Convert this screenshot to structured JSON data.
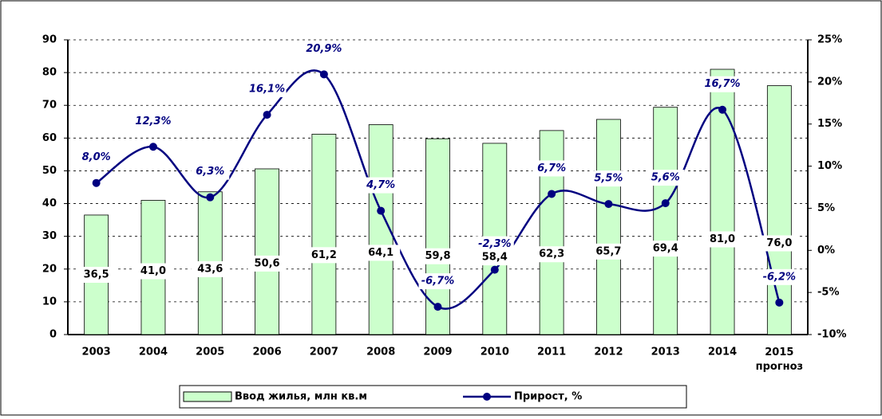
{
  "chart_data": {
    "type": "bar_line",
    "categories": [
      "2003",
      "2004",
      "2005",
      "2006",
      "2007",
      "2008",
      "2009",
      "2010",
      "2011",
      "2012",
      "2013",
      "2014",
      "2015 прогноз"
    ],
    "series": [
      {
        "name": "Ввод жилья, млн кв.м",
        "type": "bar",
        "color": "#ccffcc",
        "values": [
          36.5,
          41.0,
          43.6,
          50.6,
          61.2,
          64.1,
          59.8,
          58.4,
          62.3,
          65.7,
          69.4,
          81.0,
          76.0
        ],
        "value_labels": [
          "36,5",
          "41,0",
          "43,6",
          "50,6",
          "61,2",
          "64,1",
          "59,8",
          "58,4",
          "62,3",
          "65,7",
          "69,4",
          "81,0",
          "76,0"
        ]
      },
      {
        "name": "Прирост, %",
        "type": "line",
        "axis": "y2",
        "color": "#000080",
        "values": [
          8.0,
          12.3,
          6.3,
          16.1,
          20.9,
          4.7,
          -6.7,
          -2.3,
          6.7,
          5.5,
          5.6,
          16.7,
          -6.2
        ],
        "value_labels": [
          "8,0%",
          "12,3%",
          "6,3%",
          "16,1%",
          "20,9%",
          "4,7%",
          "-6,7%",
          "-2,3%",
          "6,7%",
          "5,5%",
          "5,6%",
          "16,7%",
          "-6,2%"
        ]
      }
    ],
    "ylim": [
      0,
      90
    ],
    "yticks": [
      0,
      10,
      20,
      30,
      40,
      50,
      60,
      70,
      80,
      90
    ],
    "y2lim": [
      -10,
      25
    ],
    "y2ticks": [
      {
        "value": -10,
        "label": "-10%"
      },
      {
        "value": -5,
        "label": "-5%"
      },
      {
        "value": 0,
        "label": "0%"
      },
      {
        "value": 5,
        "label": "5%"
      },
      {
        "value": 10,
        "label": "10%"
      },
      {
        "value": 15,
        "label": "15%"
      },
      {
        "value": 20,
        "label": "20%"
      },
      {
        "value": 25,
        "label": "25%"
      }
    ],
    "grid": true,
    "legend": "bottom"
  }
}
